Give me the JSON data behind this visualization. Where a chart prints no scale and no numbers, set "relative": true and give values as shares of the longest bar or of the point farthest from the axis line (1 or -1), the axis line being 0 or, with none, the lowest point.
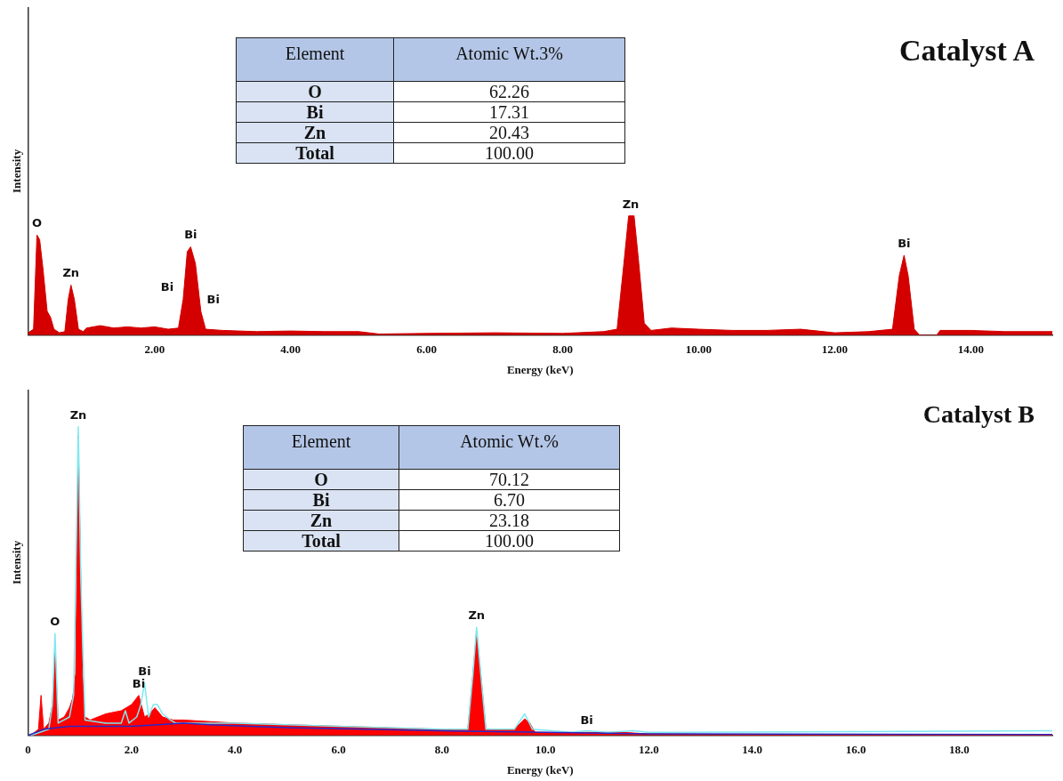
{
  "chart_data": [
    {
      "type": "area",
      "title": "Catalyst A",
      "xlabel": "Energy (keV)",
      "ylabel": "Intensity",
      "relative": true,
      "tick_labels": "x",
      "grid": false,
      "marker": "none",
      "xlim": [
        0.14,
        15.2
      ],
      "xticks": [
        {
          "value": 2,
          "label": "2.00"
        },
        {
          "value": 4,
          "label": "4.00"
        },
        {
          "value": 6,
          "label": "6.00"
        },
        {
          "value": 8,
          "label": "8.00"
        },
        {
          "value": 10,
          "label": "10.00"
        },
        {
          "value": 12,
          "label": "12.00"
        },
        {
          "value": 14,
          "label": "14.00"
        }
      ],
      "series": [
        {
          "color": "#d40000",
          "x": [
            0.14,
            0.22,
            0.27,
            0.31,
            0.36,
            0.42,
            0.47,
            0.52,
            0.6,
            0.68,
            0.73,
            0.77,
            0.82,
            0.88,
            0.95,
            1.0,
            1.2,
            1.4,
            1.6,
            1.8,
            2.0,
            2.2,
            2.35,
            2.42,
            2.48,
            2.53,
            2.6,
            2.68,
            2.75,
            3.0,
            3.5,
            4.0,
            4.5,
            5.0,
            5.3,
            6.0,
            7.0,
            8.0,
            8.6,
            8.8,
            8.9,
            8.97,
            9.05,
            9.12,
            9.2,
            9.3,
            9.6,
            10.0,
            10.5,
            11.0,
            11.5,
            12.0,
            12.5,
            12.85,
            12.95,
            13.02,
            13.08,
            13.17,
            13.25,
            13.5,
            13.55,
            14.0,
            14.5,
            15.2
          ],
          "values": [
            0.02,
            0.05,
            0.84,
            0.8,
            0.55,
            0.2,
            0.15,
            0.05,
            0.02,
            0.03,
            0.3,
            0.42,
            0.3,
            0.05,
            0.03,
            0.06,
            0.08,
            0.06,
            0.07,
            0.06,
            0.07,
            0.05,
            0.06,
            0.3,
            0.7,
            0.74,
            0.6,
            0.2,
            0.05,
            0.04,
            0.03,
            0.035,
            0.03,
            0.03,
            0.01,
            0.015,
            0.02,
            0.015,
            0.03,
            0.05,
            0.6,
            1.0,
            1.0,
            0.6,
            0.1,
            0.04,
            0.06,
            0.05,
            0.04,
            0.04,
            0.05,
            0.02,
            0.03,
            0.05,
            0.5,
            0.67,
            0.5,
            0.05,
            0,
            0,
            0.04,
            0.04,
            0.03,
            0.03
          ]
        }
      ],
      "annotations": [
        "Element",
        "Atomic Wt.3%",
        "O",
        "62.26",
        "Bi",
        "17.31",
        "Zn",
        "20.43",
        "Total",
        "100.00",
        {
          "text": "O",
          "x": 0.27,
          "y": 0.84
        },
        {
          "text": "Zn",
          "x": 0.77,
          "y": 0.42
        },
        {
          "text": "Bi",
          "x": 2.53,
          "y": 0.74
        },
        {
          "text": "Bi",
          "x": 2.42,
          "y": 0.3
        },
        {
          "text": "Bi",
          "x": 2.68,
          "y": 0.2
        },
        {
          "text": "Zn",
          "x": 9.0,
          "y": 1.0
        },
        {
          "text": "Bi",
          "x": 13.02,
          "y": 0.67
        }
      ]
    },
    {
      "type": "area",
      "title": "Catalyst B",
      "xlabel": "Energy (keV)",
      "ylabel": "Intensity",
      "relative": true,
      "tick_labels": "x",
      "grid": false,
      "marker": "none",
      "xlim": [
        0,
        19.8
      ],
      "xticks": [
        0,
        {
          "value": 2,
          "label": "2.0"
        },
        {
          "value": 4,
          "label": "4.0"
        },
        {
          "value": 6,
          "label": "6.0"
        },
        {
          "value": 8,
          "label": "8.0"
        },
        {
          "value": 10,
          "label": "10.0"
        },
        {
          "value": 12,
          "label": "12.0"
        },
        {
          "value": 14,
          "label": "14.0"
        },
        {
          "value": 16,
          "label": "16.0"
        },
        {
          "value": 18,
          "label": "18.0"
        }
      ],
      "series": [
        {
          "color": "#ff0000",
          "x": [
            0.05,
            0.2,
            0.25,
            0.3,
            0.4,
            0.47,
            0.52,
            0.58,
            0.7,
            0.8,
            0.86,
            0.92,
            0.97,
            1.05,
            1.1,
            1.2,
            1.5,
            1.8,
            2.0,
            2.14,
            2.25,
            2.35,
            2.45,
            2.6,
            2.8,
            3.0,
            3.5,
            4.0,
            5.0,
            6.0,
            7.0,
            8.0,
            8.5,
            8.6,
            8.67,
            8.75,
            8.85,
            9.4,
            9.6,
            9.7,
            9.8,
            10.5,
            10.8,
            11.5,
            12.0,
            14.0,
            19.8
          ],
          "values": [
            0,
            0.02,
            0.13,
            0.02,
            0.04,
            0.1,
            0.29,
            0.05,
            0.06,
            0.09,
            0.12,
            0.2,
            0.97,
            0.2,
            0.06,
            0.05,
            0.07,
            0.08,
            0.1,
            0.13,
            0.06,
            0.07,
            0.09,
            0.06,
            0.05,
            0.05,
            0.045,
            0.04,
            0.035,
            0.03,
            0.025,
            0.02,
            0.02,
            0.2,
            0.34,
            0.2,
            0.02,
            0.02,
            0.054,
            0.04,
            0.01,
            0.01,
            0.01,
            0.01,
            0.005,
            0.003,
            0.002
          ]
        },
        {
          "type": "line",
          "color": "#7fe8f0",
          "x": [
            0.05,
            0.4,
            0.47,
            0.52,
            0.58,
            0.8,
            0.88,
            0.93,
            0.97,
            1.02,
            1.1,
            1.5,
            1.8,
            1.88,
            1.95,
            2.1,
            2.18,
            2.25,
            2.33,
            2.42,
            2.5,
            2.6,
            2.75,
            2.85,
            3.0,
            4.0,
            6.0,
            8.0,
            8.5,
            8.6,
            8.67,
            8.75,
            8.85,
            9.4,
            9.6,
            9.75,
            10.5,
            10.8,
            11.2,
            11.7,
            12.0,
            19.8
          ],
          "values": [
            0,
            0.02,
            0.1,
            0.33,
            0.04,
            0.06,
            0.13,
            0.6,
            1.0,
            0.5,
            0.05,
            0.04,
            0.04,
            0.08,
            0.04,
            0.06,
            0.1,
            0.17,
            0.06,
            0.1,
            0.1,
            0.07,
            0.05,
            0.04,
            0.04,
            0.04,
            0.03,
            0.02,
            0.02,
            0.2,
            0.35,
            0.2,
            0.02,
            0.02,
            0.07,
            0.02,
            0.01,
            0.015,
            0.01,
            0.015,
            0.01,
            0.015
          ]
        },
        {
          "type": "line",
          "color": "#2828c8",
          "x": [
            0,
            0.3,
            0.8,
            2.0,
            3.0,
            3.5,
            5.0,
            8.0,
            12.0,
            19.8
          ],
          "values": [
            0,
            0.02,
            0.03,
            0.03,
            0.04,
            0.035,
            0.025,
            0.015,
            0.005,
            0.003
          ]
        }
      ],
      "annotations": [
        "Element",
        "Atomic Wt.%",
        "O",
        "70.12",
        "Bi",
        "6.70",
        "Zn",
        "23.18",
        "Total",
        "100.00",
        {
          "text": "Zn",
          "x": 0.97,
          "y": 1.0
        },
        {
          "text": "O",
          "x": 0.52,
          "y": 0.33
        },
        {
          "text": "Bi",
          "x": 2.25,
          "y": 0.17
        },
        {
          "text": "Bi",
          "x": 2.14,
          "y": 0.13
        },
        {
          "text": "Zn",
          "x": 8.67,
          "y": 0.35
        },
        {
          "text": "Bi",
          "x": 10.8,
          "y": 0.01
        }
      ]
    }
  ]
}
